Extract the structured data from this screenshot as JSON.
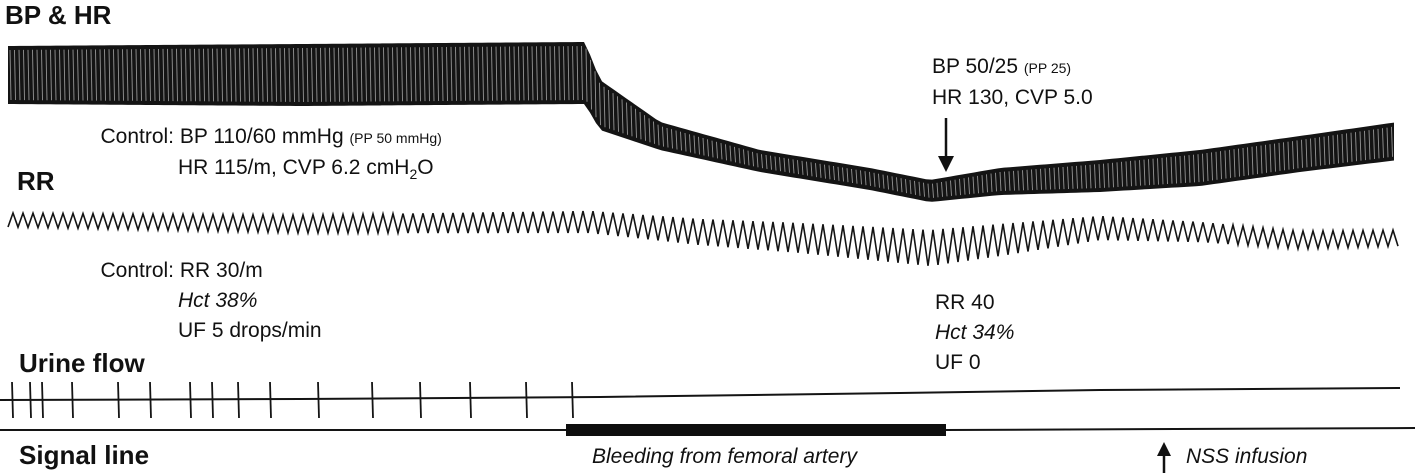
{
  "sections": {
    "bp_hr": "BP & HR",
    "rr": "RR",
    "urine": "Urine flow",
    "signal": "Signal line"
  },
  "control": {
    "label": "Control:",
    "bp_main": "BP 110/60 mmHg",
    "bp_pp": "(PP 50 mmHg)",
    "hr_cvp_pre": "HR 115/m, CVP 6.2 cmH",
    "hr_cvp_sub": "2",
    "hr_cvp_post": "O",
    "rr": "RR 30/m",
    "hct": "Hct 38%",
    "uf": "UF 5 drops/min"
  },
  "after": {
    "bp_main": "BP 50/25",
    "bp_pp": "(PP 25)",
    "hr_cvp": "HR 130, CVP 5.0",
    "rr": "RR 40",
    "hct": "Hct 34%",
    "uf": "UF 0"
  },
  "events": {
    "bleeding": "Bleeding from femoral artery",
    "nss": "NSS infusion"
  }
}
